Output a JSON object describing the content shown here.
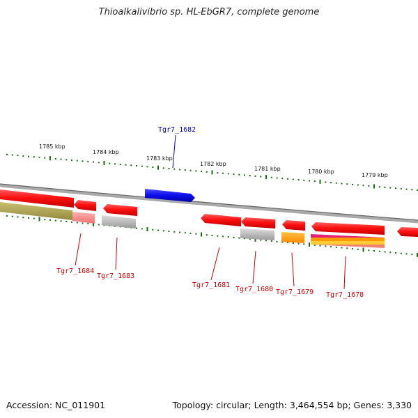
{
  "title": "Thioalkalivibrio sp. HL-EbGR7, complete genome",
  "footer": {
    "accession": "Accession: NC_011901",
    "summary": "Topology: circular; Length: 3,464,554 bp; Genes: 3,330"
  },
  "colors": {
    "forward_gene": "#1010ee",
    "reverse_gene": "#ee1111",
    "label_forward": "#0000aa",
    "label_reverse": "#cc0000",
    "ticks": "#1a6b12",
    "backbone": "#888888",
    "cog_olive": "#a8a050",
    "cog_pink": "#f08080",
    "cog_gray": "#b8b8b8",
    "cog_orange": "#ff9900",
    "cog_magenta": "#e0207a"
  },
  "kbp_labels": [
    {
      "text": "1785 kbp"
    },
    {
      "text": "1784 kbp"
    },
    {
      "text": "1783 kbp"
    },
    {
      "text": "1782 kbp"
    },
    {
      "text": "1781 kbp"
    },
    {
      "text": "1780 kbp"
    },
    {
      "text": "1779 kbp"
    }
  ],
  "genes": [
    {
      "locus": "Tgr7_1682",
      "strand": "+"
    },
    {
      "locus": "Tgr7_1684",
      "strand": "-"
    },
    {
      "locus": "Tgr7_1683",
      "strand": "-"
    },
    {
      "locus": "Tgr7_1681",
      "strand": "-"
    },
    {
      "locus": "Tgr7_1680",
      "strand": "-"
    },
    {
      "locus": "Tgr7_1679",
      "strand": "-"
    },
    {
      "locus": "Tgr7_1678",
      "strand": "-"
    }
  ]
}
